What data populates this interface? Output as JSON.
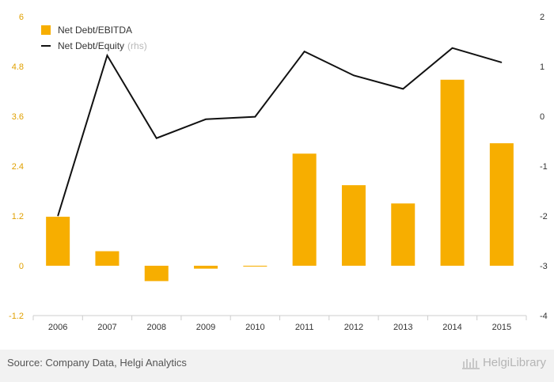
{
  "footer": {
    "source": "Source: Company Data, Helgi Analytics",
    "brand": "HelgiLibrary"
  },
  "legend": {
    "bar_label": "Net Debt/EBITDA",
    "line_label": "Net Debt/Equity",
    "line_suffix": "(rhs)"
  },
  "colors": {
    "bar": "#f7ae00",
    "line": "#111111",
    "left_ticks": "#e0a000",
    "right_ticks": "#333333",
    "grid": "#e6e6e6"
  },
  "chart_data": {
    "type": "bar",
    "categories": [
      "2006",
      "2007",
      "2008",
      "2009",
      "2010",
      "2011",
      "2012",
      "2013",
      "2014",
      "2015"
    ],
    "series": [
      {
        "name": "Net Debt/EBITDA",
        "type": "bar",
        "axis": "left",
        "values": [
          1.18,
          0.35,
          -0.37,
          -0.07,
          -0.02,
          2.7,
          1.94,
          1.5,
          4.48,
          2.95
        ]
      },
      {
        "name": "Net Debt/Equity",
        "type": "line",
        "axis": "right",
        "values": [
          -2.0,
          1.22,
          -0.44,
          -0.06,
          -0.01,
          1.3,
          0.82,
          0.55,
          1.37,
          1.08
        ]
      }
    ],
    "left_axis": {
      "ylim": [
        -1.2,
        6
      ],
      "ticks": [
        "-1.2",
        "0",
        "1.2",
        "2.4",
        "3.6",
        "4.8",
        "6"
      ],
      "tick_values": [
        -1.2,
        0,
        1.2,
        2.4,
        3.6,
        4.8,
        6
      ]
    },
    "right_axis": {
      "ylim": [
        -4,
        2
      ],
      "ticks": [
        "-4",
        "-3",
        "-2",
        "-1",
        "0",
        "1",
        "2"
      ],
      "tick_values": [
        -4,
        -3,
        -2,
        -1,
        0,
        1,
        2
      ]
    },
    "grid": false,
    "legend_position": "top-left"
  }
}
